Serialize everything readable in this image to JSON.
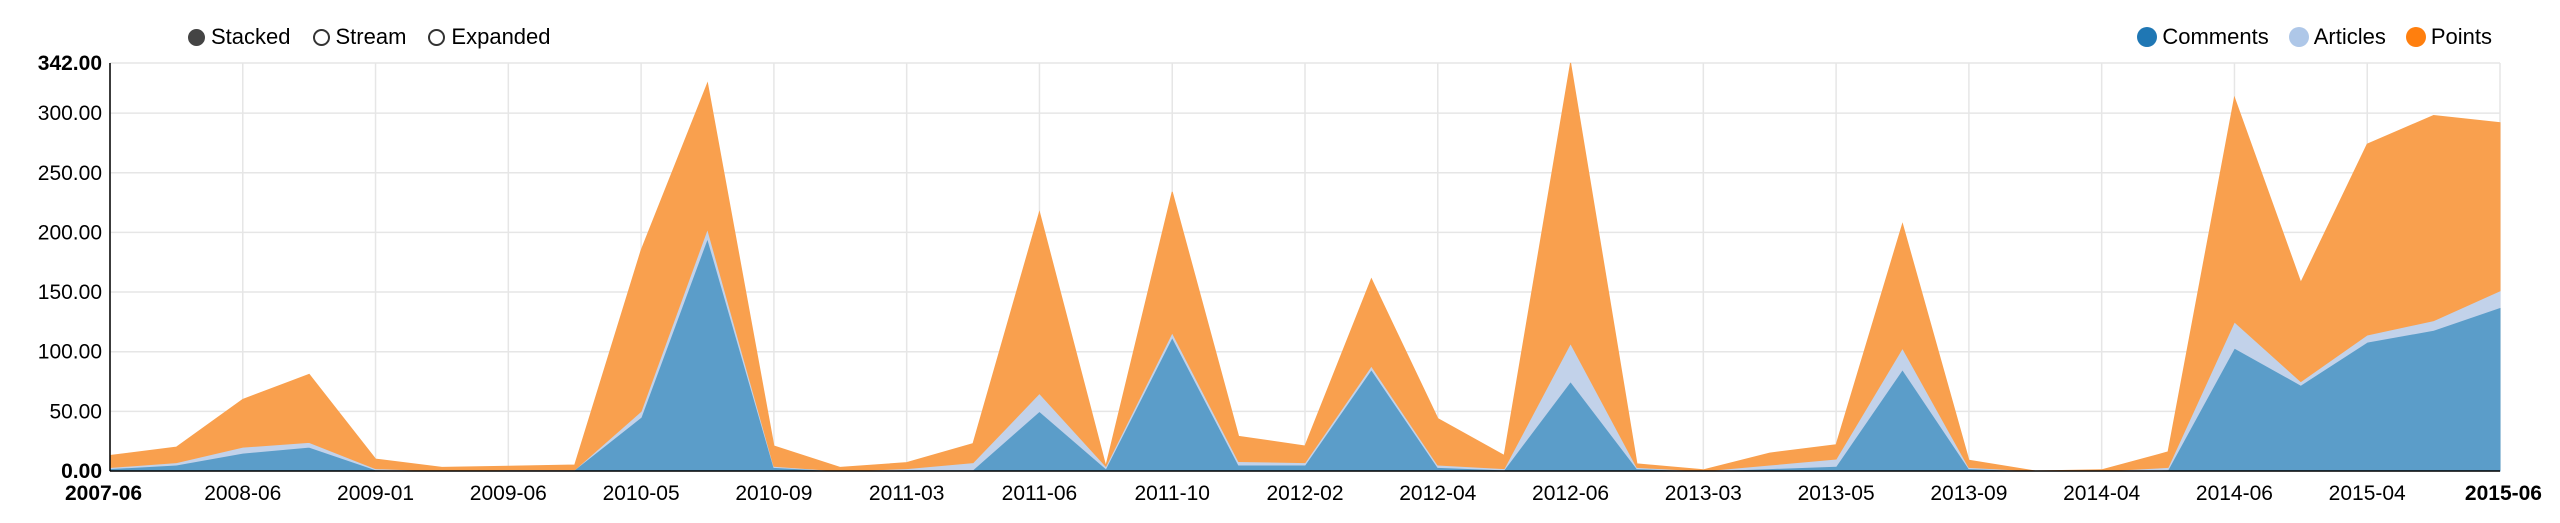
{
  "controls": [
    {
      "label": "Stacked",
      "selected": true
    },
    {
      "label": "Stream",
      "selected": false
    },
    {
      "label": "Expanded",
      "selected": false
    }
  ],
  "legend": [
    {
      "label": "Comments",
      "color": "#1f77b4"
    },
    {
      "label": "Articles",
      "color": "#aec7e8"
    },
    {
      "label": "Points",
      "color": "#ff7f0e"
    }
  ],
  "chart_data": {
    "type": "area",
    "stacked": true,
    "x": [
      "2007-06",
      "2007-08",
      "2008-06",
      "2008-09",
      "2009-01",
      "2009-03",
      "2009-06",
      "2009-09",
      "2010-05",
      "2010-07",
      "2010-09",
      "2011-01",
      "2011-03",
      "2011-05",
      "2011-06",
      "2011-07",
      "2011-10",
      "2011-11",
      "2012-02",
      "2012-03",
      "2012-04",
      "2012-05",
      "2012-06",
      "2012-08",
      "2013-03",
      "2013-04",
      "2013-05",
      "2013-07",
      "2013-09",
      "2013-11",
      "2014-04",
      "2014-05",
      "2014-06",
      "2014-08",
      "2015-04",
      "2015-05",
      "2015-06"
    ],
    "series": [
      {
        "name": "Comments",
        "color": "#5b9dc9",
        "values": [
          2,
          5,
          15,
          20,
          1,
          0,
          1,
          1,
          45,
          195,
          3,
          0,
          1,
          1,
          50,
          2,
          112,
          5,
          5,
          85,
          3,
          1,
          75,
          2,
          0,
          2,
          4,
          85,
          2,
          0,
          0,
          1,
          103,
          72,
          108,
          118,
          137
        ]
      },
      {
        "name": "Articles",
        "color": "#c2d2ea",
        "values": [
          1,
          2,
          5,
          4,
          1,
          0,
          0,
          0,
          5,
          8,
          1,
          0,
          1,
          6,
          15,
          2,
          4,
          3,
          2,
          3,
          2,
          1,
          32,
          1,
          0,
          3,
          6,
          18,
          1,
          0,
          0,
          2,
          22,
          3,
          6,
          8,
          14
        ]
      },
      {
        "name": "Points",
        "color": "#f9a04e",
        "values": [
          10,
          13,
          40,
          57,
          8,
          3,
          3,
          4,
          135,
          122,
          17,
          3,
          5,
          16,
          152,
          0,
          118,
          21,
          14,
          73,
          39,
          11,
          235,
          3,
          1,
          10,
          12,
          104,
          6,
          0,
          1,
          13,
          188,
          83,
          160,
          172,
          141
        ]
      }
    ],
    "x_tick_labels": [
      "2007-06",
      "2008-06",
      "2009-01",
      "2009-06",
      "2010-05",
      "2010-09",
      "2011-03",
      "2011-06",
      "2011-10",
      "2012-02",
      "2012-04",
      "2012-06",
      "2013-03",
      "2013-05",
      "2013-09",
      "2014-04",
      "2014-06",
      "2015-04",
      "2015-06"
    ],
    "x_tick_index": [
      0,
      2,
      4,
      6,
      8,
      10,
      12,
      14,
      16,
      18,
      20,
      22,
      24,
      26,
      28,
      30,
      32,
      34,
      36
    ],
    "y_ticks": [
      0,
      50,
      100,
      150,
      200,
      250,
      300,
      342
    ],
    "ylim": [
      0,
      342
    ],
    "y_format_decimals": 2,
    "grid": true
  }
}
